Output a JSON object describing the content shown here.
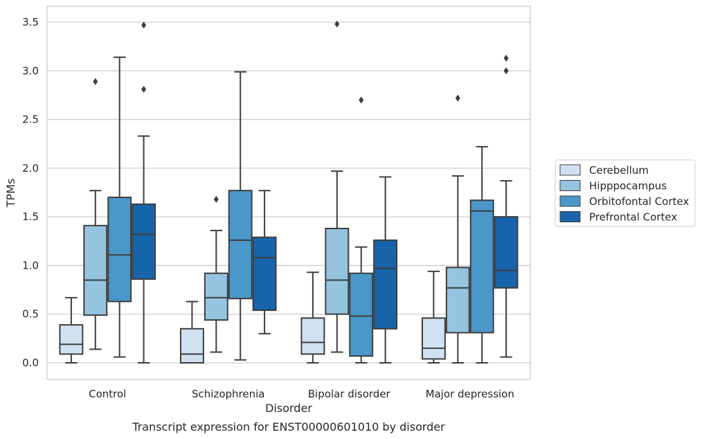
{
  "chart_data": {
    "type": "boxplot",
    "title": "Transcript expression for ENST00000601010 by disorder",
    "xlabel": "Disorder",
    "ylabel": "TPMs",
    "ylim": [
      -0.17,
      3.65
    ],
    "yticks": [
      0.0,
      0.5,
      1.0,
      1.5,
      2.0,
      2.5,
      3.0,
      3.5
    ],
    "ytick_labels": [
      "0.0",
      "0.5",
      "1.0",
      "1.5",
      "2.0",
      "2.5",
      "3.0",
      "3.5"
    ],
    "grid": true,
    "legend_position": "right",
    "categories": [
      "Control",
      "Schizophrenia",
      "Bipolar disorder",
      "Major depression"
    ],
    "series": [
      {
        "name": "Cerebellum",
        "color": "#d0e1f2",
        "boxes": [
          {
            "min": 0.0,
            "q1": 0.09,
            "median": 0.19,
            "q3": 0.39,
            "max": 0.67,
            "outliers": []
          },
          {
            "min": 0.0,
            "q1": 0.0,
            "median": 0.09,
            "q3": 0.35,
            "max": 0.63,
            "outliers": []
          },
          {
            "min": 0.0,
            "q1": 0.09,
            "median": 0.21,
            "q3": 0.46,
            "max": 0.93,
            "outliers": []
          },
          {
            "min": 0.0,
            "q1": 0.04,
            "median": 0.15,
            "q3": 0.46,
            "max": 0.94,
            "outliers": []
          }
        ]
      },
      {
        "name": "Hipppocampus",
        "color": "#94c4df",
        "boxes": [
          {
            "min": 0.14,
            "q1": 0.49,
            "median": 0.85,
            "q3": 1.41,
            "max": 1.77,
            "outliers": [
              2.89
            ]
          },
          {
            "min": 0.11,
            "q1": 0.44,
            "median": 0.67,
            "q3": 0.92,
            "max": 1.36,
            "outliers": [
              1.68
            ]
          },
          {
            "min": 0.11,
            "q1": 0.5,
            "median": 0.85,
            "q3": 1.38,
            "max": 1.97,
            "outliers": [
              3.48
            ]
          },
          {
            "min": 0.0,
            "q1": 0.31,
            "median": 0.77,
            "q3": 0.98,
            "max": 1.92,
            "outliers": [
              2.72
            ]
          }
        ]
      },
      {
        "name": "Orbitofontal Cortex",
        "color": "#4a98c9",
        "boxes": [
          {
            "min": 0.06,
            "q1": 0.63,
            "median": 1.11,
            "q3": 1.7,
            "max": 3.14,
            "outliers": []
          },
          {
            "min": 0.03,
            "q1": 0.66,
            "median": 1.26,
            "q3": 1.77,
            "max": 2.99,
            "outliers": []
          },
          {
            "min": 0.0,
            "q1": 0.07,
            "median": 0.48,
            "q3": 0.92,
            "max": 1.19,
            "outliers": [
              2.7
            ]
          },
          {
            "min": 0.0,
            "q1": 0.31,
            "median": 1.56,
            "q3": 1.67,
            "max": 2.22,
            "outliers": []
          }
        ]
      },
      {
        "name": "Prefrontal Cortex",
        "color": "#1764ab",
        "boxes": [
          {
            "min": 0.0,
            "q1": 0.86,
            "median": 1.32,
            "q3": 1.63,
            "max": 2.33,
            "outliers": [
              2.81,
              3.47
            ]
          },
          {
            "min": 0.3,
            "q1": 0.54,
            "median": 1.08,
            "q3": 1.29,
            "max": 1.77,
            "outliers": []
          },
          {
            "min": 0.0,
            "q1": 0.35,
            "median": 0.97,
            "q3": 1.26,
            "max": 1.91,
            "outliers": []
          },
          {
            "min": 0.06,
            "q1": 0.77,
            "median": 0.95,
            "q3": 1.5,
            "max": 1.87,
            "outliers": [
              3.0,
              3.13
            ]
          }
        ]
      }
    ]
  }
}
